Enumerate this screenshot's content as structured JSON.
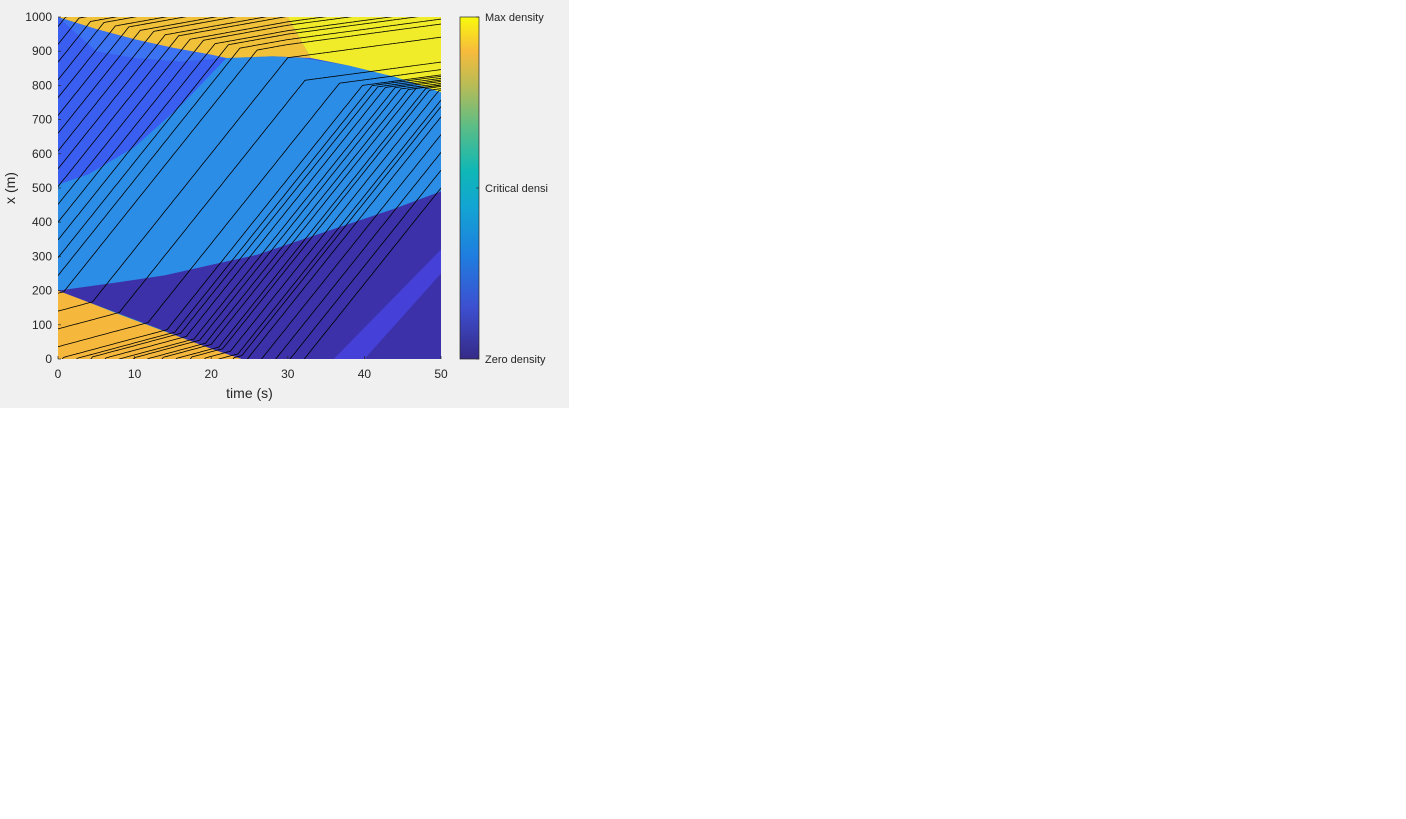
{
  "chart_data": {
    "type": "heatmap",
    "xlabel": "time (s)",
    "ylabel": "x (m)",
    "xlim": [
      0,
      50
    ],
    "ylim": [
      0,
      1000
    ],
    "xticks": [
      0,
      10,
      20,
      30,
      40,
      50
    ],
    "yticks": [
      0,
      100,
      200,
      300,
      400,
      500,
      600,
      700,
      800,
      900,
      1000
    ],
    "colormap": "parula",
    "colorbar": {
      "labels": [
        {
          "value": 0,
          "text": "Zero density"
        },
        {
          "value": 0.5,
          "text": "Critical densi"
        },
        {
          "value": 1,
          "text": "Max density"
        }
      ]
    },
    "regions": [
      {
        "name": "jam-bottom-left",
        "density": 0.8,
        "color": "#f5b83d",
        "vertices": [
          [
            0,
            0
          ],
          [
            0,
            200
          ],
          [
            3,
            175
          ],
          [
            8,
            130
          ],
          [
            14,
            80
          ],
          [
            20,
            30
          ],
          [
            24,
            0
          ]
        ]
      },
      {
        "name": "fan-wedge-lower",
        "density": 0.5,
        "color": "#2fb0c8",
        "vertices": [
          [
            0,
            200
          ],
          [
            8,
            130
          ],
          [
            14,
            80
          ],
          [
            20,
            30
          ],
          [
            24,
            0
          ],
          [
            27,
            0
          ],
          [
            32,
            25
          ],
          [
            38,
            90
          ],
          [
            44,
            170
          ],
          [
            50,
            250
          ],
          [
            50,
            490
          ],
          [
            44,
            440
          ],
          [
            38,
            395
          ],
          [
            32,
            350
          ],
          [
            26,
            305
          ],
          [
            20,
            275
          ],
          [
            14,
            245
          ],
          [
            8,
            225
          ]
        ]
      },
      {
        "name": "fan-wedge-upper",
        "density": 0.35,
        "color": "#2b8de6",
        "vertices": [
          [
            0,
            200
          ],
          [
            8,
            225
          ],
          [
            14,
            245
          ],
          [
            20,
            275
          ],
          [
            26,
            305
          ],
          [
            32,
            350
          ],
          [
            38,
            395
          ],
          [
            44,
            440
          ],
          [
            50,
            490
          ],
          [
            50,
            780
          ],
          [
            44,
            825
          ],
          [
            38,
            858
          ],
          [
            32,
            880
          ],
          [
            28,
            885
          ],
          [
            22,
            880
          ],
          [
            16,
            740
          ],
          [
            10,
            620
          ],
          [
            4,
            540
          ],
          [
            0,
            510
          ]
        ]
      },
      {
        "name": "free-flow-left",
        "density": 0.2,
        "color": "#3a5ef0",
        "vertices": [
          [
            0,
            510
          ],
          [
            4,
            540
          ],
          [
            10,
            620
          ],
          [
            16,
            740
          ],
          [
            22,
            880
          ],
          [
            28,
            885
          ],
          [
            22,
            880
          ],
          [
            16,
            870
          ],
          [
            10,
            880
          ],
          [
            5,
            900
          ],
          [
            0,
            1000
          ]
        ]
      },
      {
        "name": "upper-blue-band",
        "density": 0.25,
        "color": "#3b73f2",
        "vertices": [
          [
            0,
            510
          ],
          [
            0,
            1000
          ],
          [
            5,
            965
          ],
          [
            10,
            935
          ],
          [
            15,
            910
          ],
          [
            20,
            890
          ],
          [
            22,
            880
          ],
          [
            16,
            740
          ],
          [
            10,
            620
          ],
          [
            4,
            540
          ]
        ]
      },
      {
        "name": "jam-top",
        "density": 0.85,
        "color": "#f2c13a",
        "vertices": [
          [
            0,
            1000
          ],
          [
            30,
            1000
          ],
          [
            33,
            880
          ],
          [
            28,
            885
          ],
          [
            22,
            880
          ],
          [
            20,
            890
          ],
          [
            15,
            910
          ],
          [
            10,
            935
          ],
          [
            5,
            965
          ]
        ]
      },
      {
        "name": "max-density-top-right",
        "density": 1.0,
        "color": "#f0ec2a",
        "vertices": [
          [
            30,
            1000
          ],
          [
            50,
            1000
          ],
          [
            50,
            780
          ],
          [
            44,
            825
          ],
          [
            38,
            858
          ],
          [
            33,
            880
          ]
        ]
      },
      {
        "name": "empty-bottom-right",
        "density": 0.0,
        "color": "#3c31a8",
        "vertices": [
          [
            20,
            0
          ],
          [
            50,
            0
          ],
          [
            50,
            490
          ],
          [
            44,
            440
          ],
          [
            38,
            395
          ],
          [
            32,
            350
          ],
          [
            26,
            305
          ],
          [
            20,
            275
          ],
          [
            14,
            245
          ],
          [
            8,
            225
          ],
          [
            0,
            200
          ],
          [
            0,
            450
          ],
          [
            14,
            245
          ],
          [
            20,
            30
          ],
          [
            24,
            0
          ]
        ]
      }
    ],
    "trajectories": {
      "count": 38,
      "color": "#000000"
    }
  }
}
